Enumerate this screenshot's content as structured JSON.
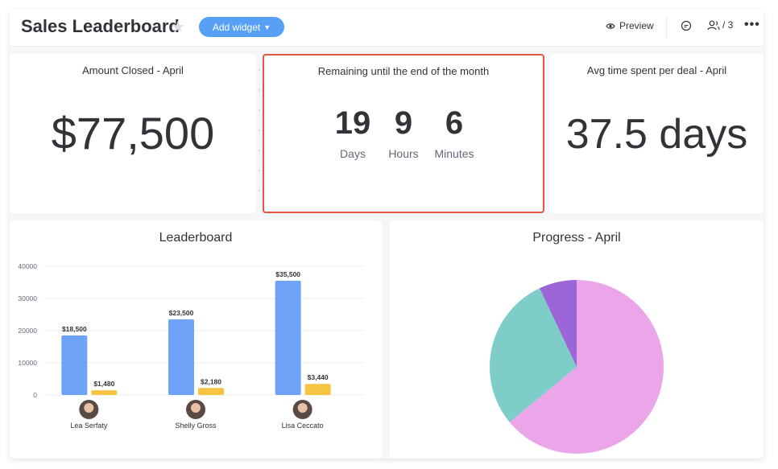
{
  "header": {
    "title": "Sales Leaderboard",
    "add_widget_label": "Add widget",
    "preview_label": "Preview",
    "members_count": "/ 3"
  },
  "widgets": {
    "amount_closed": {
      "title": "Amount Closed - April",
      "value": "$77,500"
    },
    "remaining": {
      "title": "Remaining until the end of the month",
      "items": [
        {
          "value": "19",
          "unit": "Days"
        },
        {
          "value": "9",
          "unit": "Hours"
        },
        {
          "value": "6",
          "unit": "Minutes"
        }
      ]
    },
    "avg_time": {
      "title": "Avg time spent per deal - April",
      "value": "37.5 days"
    },
    "leaderboard": {
      "title": "Leaderboard"
    },
    "progress": {
      "title": "Progress - April"
    }
  },
  "colors": {
    "accent": "#57a0f5",
    "highlight_border": "#e4553f",
    "bar_blue": "#6da2f7",
    "bar_yellow": "#f6c342",
    "pie_pink": "#eba6ea",
    "pie_teal": "#7fcdc8",
    "pie_purple": "#9c66d9"
  },
  "chart_data": [
    {
      "type": "bar",
      "title": "Leaderboard",
      "categories": [
        "Lea Serfaty",
        "Shelly Gross",
        "Lisa Ceccato"
      ],
      "series": [
        {
          "values": [
            18500,
            23500,
            35500
          ],
          "labels": [
            "$18,500",
            "$23,500",
            "$35,500"
          ],
          "color": "#6da2f7"
        },
        {
          "values": [
            1480,
            2180,
            3440
          ],
          "labels": [
            "$1,480",
            "$2,180",
            "$3,440"
          ],
          "color": "#f6c342"
        }
      ],
      "yticks": [
        0,
        10000,
        20000,
        30000,
        40000
      ],
      "ylim": [
        0,
        40000
      ]
    },
    {
      "type": "pie",
      "title": "Progress - April",
      "values": [
        64,
        29,
        7
      ],
      "colors": [
        "#eba6ea",
        "#7fcdc8",
        "#9c66d9"
      ]
    }
  ]
}
